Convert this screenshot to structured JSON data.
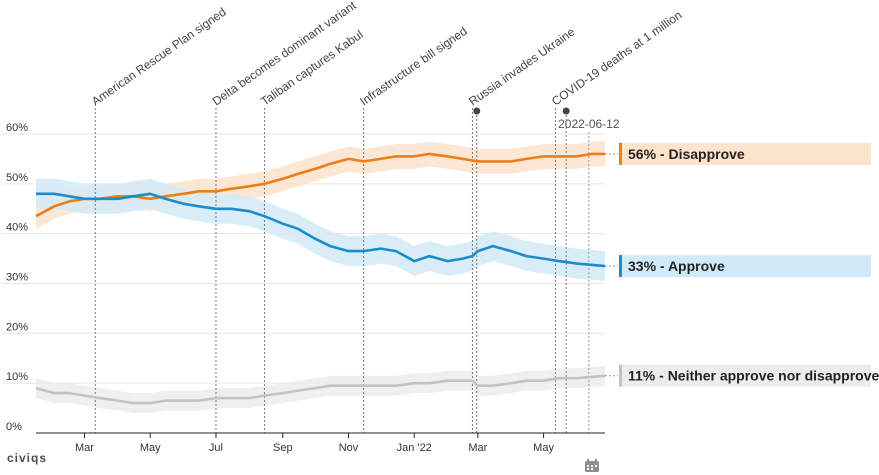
{
  "brand": {
    "logo_text": "civiqs"
  },
  "icons": {
    "calendar": "calendar-icon"
  },
  "chart_data": {
    "type": "line",
    "title": "",
    "xlabel": "",
    "ylabel": "",
    "y_ticks": [
      "0%",
      "10%",
      "20%",
      "30%",
      "40%",
      "50%",
      "60%"
    ],
    "ylim": [
      0,
      60
    ],
    "x_range": [
      "2021-01-15",
      "2022-06-27"
    ],
    "x_ticks": [
      {
        "label": "Mar",
        "date": "2021-03-01"
      },
      {
        "label": "May",
        "date": "2021-05-01"
      },
      {
        "label": "Jul",
        "date": "2021-07-01"
      },
      {
        "label": "Sep",
        "date": "2021-09-01"
      },
      {
        "label": "Nov",
        "date": "2021-11-01"
      },
      {
        "label": "Jan '22",
        "date": "2022-01-01"
      },
      {
        "label": "Mar",
        "date": "2022-03-01"
      },
      {
        "label": "May",
        "date": "2022-05-01"
      }
    ],
    "grid": true,
    "hover_date": "2022-06-12",
    "events": [
      {
        "label": "American Rescue Plan signed",
        "date": "2021-03-11"
      },
      {
        "label": "Delta becomes dominant variant",
        "date": "2021-07-01"
      },
      {
        "label": "Taliban captures Kabul",
        "date": "2021-08-15"
      },
      {
        "label": "Infrastructure bill signed",
        "date": "2021-11-15"
      },
      {
        "label": "Russia invades Ukraine",
        "date": "2022-02-24"
      },
      {
        "label": "COVID-19 deaths at 1 million",
        "date": "2022-05-12"
      }
    ],
    "markers": [
      "2022-02-28",
      "2022-05-22"
    ],
    "series": [
      {
        "name": "Disapprove",
        "end_label": "56% - Disapprove",
        "color": "#ee7d14",
        "band_color": "#fbe3cc",
        "points": [
          [
            "2021-01-15",
            43.5
          ],
          [
            "2021-02-01",
            45.5
          ],
          [
            "2021-02-15",
            46.5
          ],
          [
            "2021-03-01",
            47
          ],
          [
            "2021-03-15",
            47
          ],
          [
            "2021-04-01",
            47.5
          ],
          [
            "2021-04-15",
            47.5
          ],
          [
            "2021-05-01",
            47
          ],
          [
            "2021-05-15",
            47.5
          ],
          [
            "2021-06-01",
            48
          ],
          [
            "2021-06-15",
            48.5
          ],
          [
            "2021-07-01",
            48.5
          ],
          [
            "2021-07-15",
            49
          ],
          [
            "2021-08-01",
            49.5
          ],
          [
            "2021-08-15",
            50
          ],
          [
            "2021-09-01",
            51
          ],
          [
            "2021-09-15",
            52
          ],
          [
            "2021-10-01",
            53
          ],
          [
            "2021-10-15",
            54
          ],
          [
            "2021-11-01",
            55
          ],
          [
            "2021-11-15",
            54.5
          ],
          [
            "2021-12-01",
            55
          ],
          [
            "2021-12-15",
            55.5
          ],
          [
            "2022-01-01",
            55.5
          ],
          [
            "2022-01-15",
            56
          ],
          [
            "2022-02-01",
            55.5
          ],
          [
            "2022-02-15",
            55
          ],
          [
            "2022-03-01",
            54.5
          ],
          [
            "2022-03-15",
            54.5
          ],
          [
            "2022-04-01",
            54.5
          ],
          [
            "2022-04-15",
            55
          ],
          [
            "2022-05-01",
            55.5
          ],
          [
            "2022-05-15",
            55.5
          ],
          [
            "2022-06-01",
            55.5
          ],
          [
            "2022-06-15",
            56
          ],
          [
            "2022-06-27",
            56
          ]
        ],
        "band": 2.5
      },
      {
        "name": "Approve",
        "end_label": "33% - Approve",
        "color": "#1a8ccc",
        "band_color": "#d2eaf8",
        "points": [
          [
            "2021-01-15",
            48
          ],
          [
            "2021-02-01",
            48
          ],
          [
            "2021-02-15",
            47.5
          ],
          [
            "2021-03-01",
            47
          ],
          [
            "2021-03-15",
            47
          ],
          [
            "2021-04-01",
            47
          ],
          [
            "2021-04-15",
            47.5
          ],
          [
            "2021-05-01",
            48
          ],
          [
            "2021-05-15",
            47
          ],
          [
            "2021-06-01",
            46
          ],
          [
            "2021-06-15",
            45.5
          ],
          [
            "2021-07-01",
            45
          ],
          [
            "2021-07-15",
            45
          ],
          [
            "2021-08-01",
            44.5
          ],
          [
            "2021-08-15",
            43.5
          ],
          [
            "2021-09-01",
            42
          ],
          [
            "2021-09-15",
            41
          ],
          [
            "2021-10-01",
            39
          ],
          [
            "2021-10-15",
            37.5
          ],
          [
            "2021-11-01",
            36.5
          ],
          [
            "2021-11-15",
            36.5
          ],
          [
            "2021-12-01",
            37
          ],
          [
            "2021-12-15",
            36.5
          ],
          [
            "2022-01-01",
            34.5
          ],
          [
            "2022-01-15",
            35.5
          ],
          [
            "2022-02-01",
            34.5
          ],
          [
            "2022-02-15",
            35
          ],
          [
            "2022-02-24",
            35.5
          ],
          [
            "2022-03-01",
            36.5
          ],
          [
            "2022-03-15",
            37.5
          ],
          [
            "2022-04-01",
            36.5
          ],
          [
            "2022-04-15",
            35.5
          ],
          [
            "2022-05-01",
            35
          ],
          [
            "2022-05-15",
            34.5
          ],
          [
            "2022-06-01",
            34
          ],
          [
            "2022-06-27",
            33.5
          ]
        ],
        "band": 3
      },
      {
        "name": "Neither approve nor disapprove",
        "end_label": "11% - Neither approve nor disapprove",
        "color": "#c2c2c2",
        "band_color": "#ececec",
        "points": [
          [
            "2021-01-15",
            9
          ],
          [
            "2021-02-01",
            8
          ],
          [
            "2021-02-15",
            8
          ],
          [
            "2021-03-01",
            7.5
          ],
          [
            "2021-03-15",
            7
          ],
          [
            "2021-04-01",
            6.5
          ],
          [
            "2021-04-15",
            6
          ],
          [
            "2021-05-01",
            6
          ],
          [
            "2021-05-15",
            6.5
          ],
          [
            "2021-06-01",
            6.5
          ],
          [
            "2021-06-15",
            6.5
          ],
          [
            "2021-07-01",
            7
          ],
          [
            "2021-07-15",
            7
          ],
          [
            "2021-08-01",
            7
          ],
          [
            "2021-08-15",
            7.5
          ],
          [
            "2021-09-01",
            8
          ],
          [
            "2021-09-15",
            8.5
          ],
          [
            "2021-10-01",
            9
          ],
          [
            "2021-10-15",
            9.5
          ],
          [
            "2021-11-01",
            9.5
          ],
          [
            "2021-11-15",
            9.5
          ],
          [
            "2021-12-01",
            9.5
          ],
          [
            "2021-12-15",
            9.5
          ],
          [
            "2022-01-01",
            10
          ],
          [
            "2022-01-15",
            10
          ],
          [
            "2022-02-01",
            10.5
          ],
          [
            "2022-02-24",
            10.5
          ],
          [
            "2022-03-01",
            9.5
          ],
          [
            "2022-03-15",
            9.5
          ],
          [
            "2022-04-01",
            10
          ],
          [
            "2022-04-15",
            10.5
          ],
          [
            "2022-05-01",
            10.5
          ],
          [
            "2022-05-15",
            11
          ],
          [
            "2022-06-01",
            11
          ],
          [
            "2022-06-27",
            11.5
          ]
        ],
        "band": 2
      }
    ]
  }
}
